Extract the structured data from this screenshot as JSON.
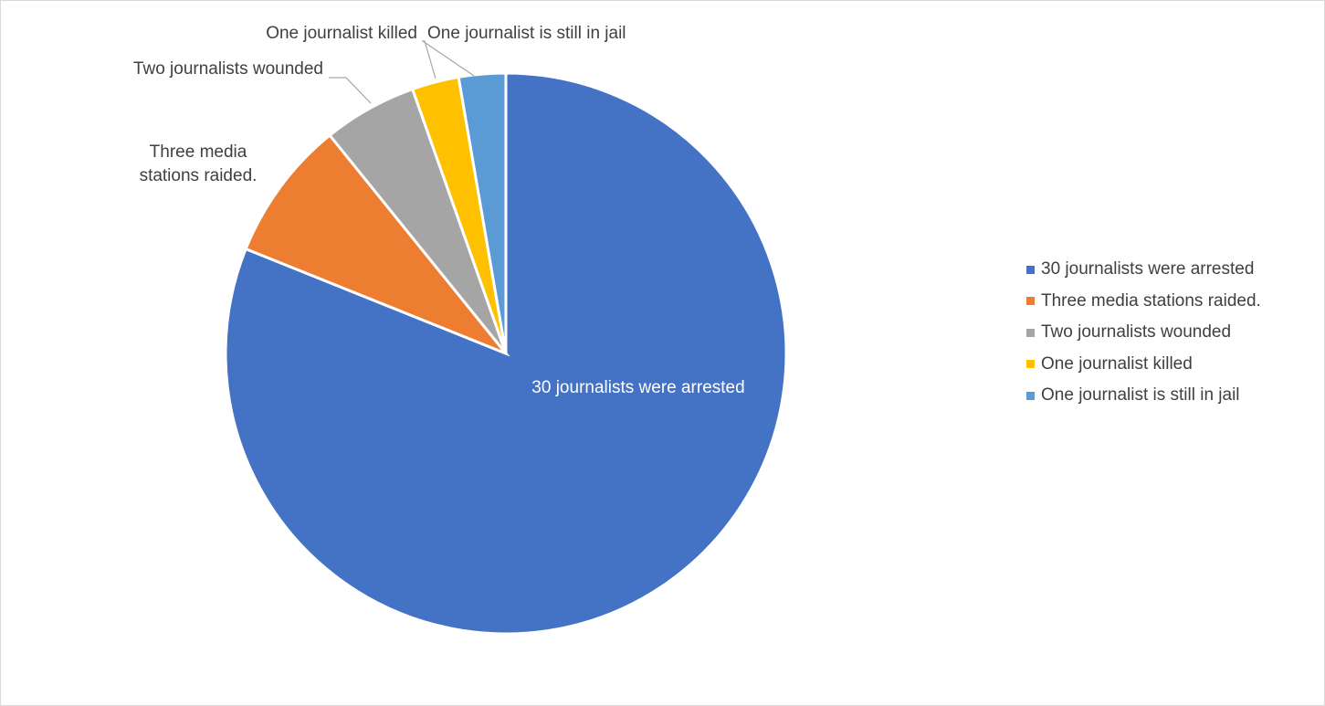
{
  "chart_data": {
    "type": "pie",
    "title": "",
    "start_angle_deg": 0,
    "direction": "clockwise",
    "legend_position": "right",
    "slices": [
      {
        "label": "30 journalists were arrested",
        "value": 30,
        "color": "#4472C4",
        "data_label": "30 journalists were arrested",
        "data_label_position": "inside"
      },
      {
        "label": "Three media stations raided.",
        "value": 3,
        "color": "#ED7D31",
        "data_label": "Three media stations raided.",
        "data_label_lines": [
          "Three media",
          "stations raided."
        ],
        "data_label_position": "outside"
      },
      {
        "label": "Two journalists wounded",
        "value": 2,
        "color": "#A5A5A5",
        "data_label": "Two journalists wounded",
        "data_label_position": "outside"
      },
      {
        "label": "One journalist killed",
        "value": 1,
        "color": "#FFC000",
        "data_label": "One journalist killed",
        "data_label_position": "outside"
      },
      {
        "label": "One journalist is still in jail",
        "value": 1,
        "color": "#5B9BD5",
        "data_label": "One journalist is still in jail",
        "data_label_position": "outside"
      }
    ]
  }
}
